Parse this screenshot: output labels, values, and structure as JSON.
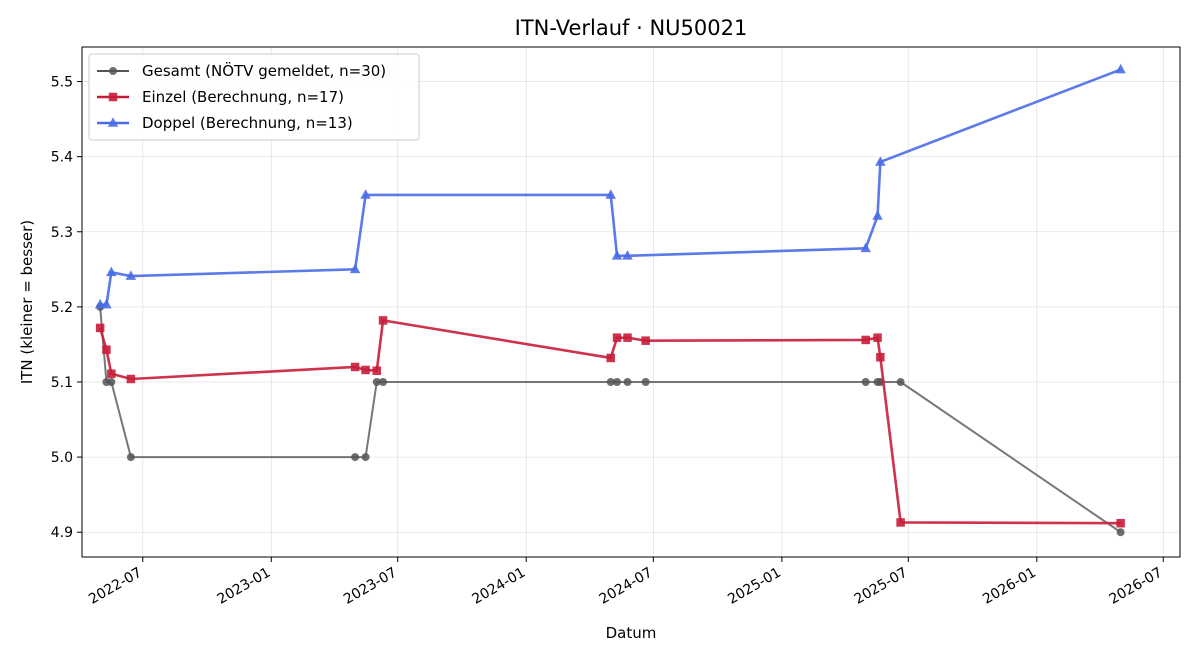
{
  "chart_data": {
    "type": "line",
    "title": "ITN-Verlauf · NU50021",
    "xlabel": "Datum",
    "ylabel": "ITN  (kleiner = besser)",
    "xlim": [
      "2022-04-05",
      "2026-07-25"
    ],
    "ylim": [
      4.867,
      5.546
    ],
    "yticks": [
      4.9,
      5.0,
      5.1,
      5.2,
      5.3,
      5.4,
      5.5
    ],
    "ytick_labels": [
      "4.9",
      "5.0",
      "5.1",
      "5.2",
      "5.3",
      "5.4",
      "5.5"
    ],
    "xticks": [
      "2022-07-01",
      "2023-01-01",
      "2023-07-01",
      "2024-01-01",
      "2024-07-01",
      "2025-01-01",
      "2025-07-01",
      "2026-01-01",
      "2026-07-01"
    ],
    "xtick_labels": [
      "2022-07",
      "2023-01",
      "2023-07",
      "2024-01",
      "2024-07",
      "2025-01",
      "2025-07",
      "2026-01",
      "2026-07"
    ],
    "grid": true,
    "legend_position": "top-left",
    "series": [
      {
        "name": "Gesamt (NÖTV gemeldet, n=30)",
        "color": "#555555",
        "marker": "circle",
        "x": [
          "2022-05-01",
          "2022-05-10",
          "2022-05-17",
          "2022-06-14",
          "2023-05-01",
          "2023-05-16",
          "2023-06-01",
          "2023-06-10",
          "2024-05-01",
          "2024-05-10",
          "2024-05-25",
          "2024-06-20",
          "2025-05-01",
          "2025-05-18",
          "2025-05-22",
          "2025-06-20",
          "2026-05-01"
        ],
        "y": [
          5.2,
          5.1,
          5.1,
          5.0,
          5.0,
          5.0,
          5.1,
          5.1,
          5.1,
          5.1,
          5.1,
          5.1,
          5.1,
          5.1,
          5.1,
          5.1,
          4.9
        ]
      },
      {
        "name": "Einzel (Berechnung, n=17)",
        "color": "#c81d3a",
        "marker": "square",
        "x": [
          "2022-05-01",
          "2022-05-10",
          "2022-05-17",
          "2022-06-14",
          "2023-05-01",
          "2023-05-16",
          "2023-06-01",
          "2023-06-10",
          "2024-05-01",
          "2024-05-10",
          "2024-05-25",
          "2024-06-20",
          "2025-05-01",
          "2025-05-18",
          "2025-05-22",
          "2025-06-20",
          "2026-05-01"
        ],
        "y": [
          5.172,
          5.143,
          5.111,
          5.104,
          5.12,
          5.116,
          5.115,
          5.182,
          5.132,
          5.159,
          5.159,
          5.155,
          5.156,
          5.159,
          5.133,
          4.913,
          4.912
        ]
      },
      {
        "name": "Doppel (Berechnung, n=13)",
        "color": "#4a6ce8",
        "marker": "triangle",
        "x": [
          "2022-05-01",
          "2022-05-10",
          "2022-05-17",
          "2022-06-14",
          "2023-05-01",
          "2023-05-16",
          "2024-05-01",
          "2024-05-10",
          "2024-05-25",
          "2025-05-01",
          "2025-05-18",
          "2025-05-22",
          "2026-05-01"
        ],
        "y": [
          5.203,
          5.203,
          5.246,
          5.241,
          5.25,
          5.349,
          5.349,
          5.268,
          5.268,
          5.278,
          5.321,
          5.393,
          5.516
        ]
      }
    ]
  }
}
